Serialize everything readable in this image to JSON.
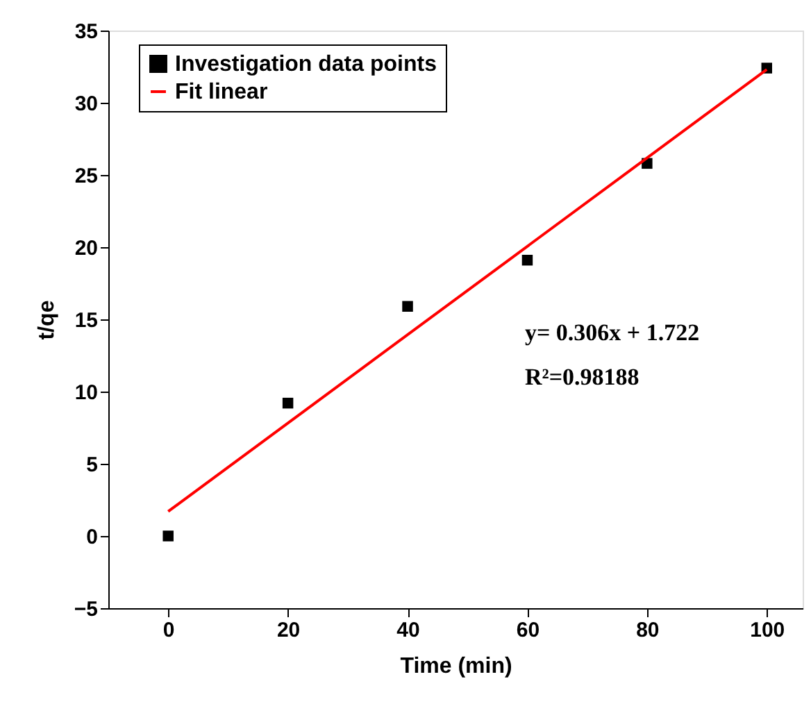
{
  "chart_data": {
    "type": "scatter",
    "xlabel": "Time (min)",
    "ylabel": "t/qe",
    "x": [
      0,
      20,
      40,
      60,
      80,
      100
    ],
    "series": [
      {
        "name": "Investigation data points",
        "type": "scatter",
        "color": "#000000",
        "marker": "square",
        "values": [
          0,
          9.2,
          15.9,
          19.1,
          25.8,
          32.4
        ]
      },
      {
        "name": "Fit linear",
        "type": "line",
        "color": "#ff0000",
        "x": [
          0,
          100
        ],
        "values": [
          1.7,
          32.3
        ]
      }
    ],
    "xlim": [
      -10,
      106
    ],
    "xticks": [
      0,
      20,
      40,
      60,
      80,
      100
    ],
    "ylim": [
      -5,
      35
    ],
    "yticks": [
      -5,
      0,
      5,
      10,
      15,
      20,
      25,
      30,
      35
    ],
    "grid": false,
    "legend": "top left",
    "annotations": [
      "y= 0.306x + 1.722",
      "R²=0.98188"
    ]
  }
}
